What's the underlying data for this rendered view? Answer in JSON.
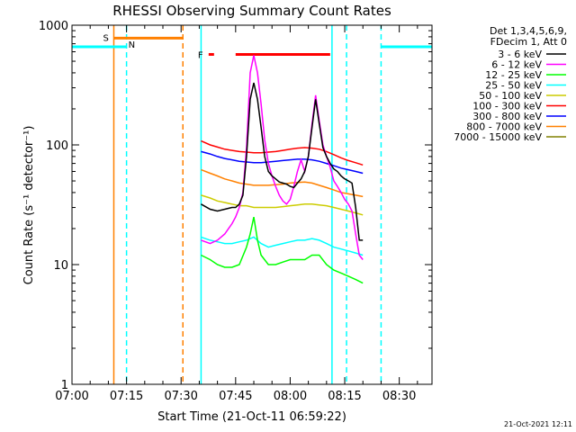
{
  "chart_data": {
    "type": "line",
    "title": "RHESSI Observing Summary Count Rates",
    "xlabel": "Start Time (21-Oct-11 06:59:22)",
    "ylabel": "Count Rate (s⁻¹ detector⁻¹)",
    "x_unit": "minutes after 07:00 UT",
    "xlim": [
      0,
      99
    ],
    "ylim": [
      1,
      1000
    ],
    "yscale": "log",
    "x_ticks": [
      {
        "x": 0,
        "label": "07:00"
      },
      {
        "x": 15,
        "label": "07:15"
      },
      {
        "x": 30,
        "label": "07:30"
      },
      {
        "x": 45,
        "label": "07:45"
      },
      {
        "x": 60,
        "label": "08:00"
      },
      {
        "x": 75,
        "label": "08:15"
      },
      {
        "x": 90,
        "label": "08:30"
      }
    ],
    "y_ticks": [
      {
        "y": 1,
        "label": "1"
      },
      {
        "y": 10,
        "label": "10"
      },
      {
        "y": 100,
        "label": "100"
      },
      {
        "y": 1000,
        "label": "1000"
      }
    ],
    "legend_header": [
      "Det 1,3,4,5,6,9,",
      "FDecim 1, Att 0"
    ],
    "legend_position": "right",
    "series": [
      {
        "name": "3 - 6 keV",
        "color": "#000000",
        "x": [
          35.5,
          38,
          40,
          42,
          44,
          45,
          46,
          47,
          48,
          49,
          50,
          51,
          52,
          53,
          54,
          55,
          56,
          57,
          58,
          59,
          60,
          61,
          62,
          63,
          64,
          65,
          66,
          67,
          68,
          69,
          70,
          71,
          72,
          73,
          74,
          75,
          76,
          77,
          78,
          79,
          80
        ],
        "y": [
          32,
          29,
          28,
          29,
          30,
          30,
          32,
          38,
          80,
          240,
          330,
          240,
          140,
          80,
          60,
          55,
          52,
          49,
          48,
          47,
          45,
          44,
          48,
          52,
          60,
          80,
          140,
          240,
          150,
          95,
          80,
          70,
          63,
          60,
          55,
          52,
          50,
          48,
          30,
          16,
          16
        ]
      },
      {
        "name": "6 - 12 keV",
        "color": "#ff00ff",
        "x": [
          35.5,
          38,
          40,
          42,
          44,
          45,
          46,
          47,
          48,
          49,
          50,
          51,
          52,
          53,
          54,
          55,
          56,
          57,
          58,
          59,
          60,
          61,
          62,
          63,
          64,
          65,
          66,
          67,
          68,
          69,
          70,
          71,
          72,
          73,
          74,
          75,
          76,
          77,
          78,
          79,
          80
        ],
        "y": [
          16,
          15,
          16,
          18,
          22,
          25,
          30,
          40,
          95,
          400,
          560,
          400,
          220,
          110,
          70,
          55,
          45,
          38,
          34,
          32,
          35,
          45,
          60,
          75,
          60,
          80,
          150,
          260,
          160,
          100,
          80,
          65,
          50,
          45,
          40,
          35,
          32,
          28,
          18,
          12,
          11
        ]
      },
      {
        "name": "12 - 25 keV",
        "color": "#00ff00",
        "x": [
          35.5,
          38,
          40,
          42,
          44,
          46,
          48,
          49,
          50,
          51,
          52,
          54,
          56,
          58,
          60,
          62,
          64,
          66,
          68,
          70,
          72,
          74,
          76,
          78,
          80
        ],
        "y": [
          12,
          11,
          10,
          9.5,
          9.5,
          10,
          14,
          18,
          25,
          16,
          12,
          10,
          10,
          10.5,
          11,
          11,
          11,
          12,
          12,
          10,
          9,
          8.5,
          8,
          7.5,
          7
        ]
      },
      {
        "name": "25 - 50 keV",
        "color": "#00ffff",
        "x": [
          35.5,
          38,
          40,
          42,
          44,
          46,
          48,
          50,
          52,
          54,
          56,
          58,
          60,
          62,
          64,
          66,
          68,
          70,
          72,
          74,
          76,
          78,
          80
        ],
        "y": [
          17,
          16,
          15.5,
          15,
          15,
          15.5,
          16,
          17,
          15,
          14,
          14.5,
          15,
          15.5,
          16,
          16,
          16.5,
          16,
          15,
          14,
          13.5,
          13,
          12.5,
          12
        ]
      },
      {
        "name": "50 - 100 keV",
        "color": "#cccc00",
        "x": [
          35.5,
          38,
          40,
          42,
          44,
          46,
          48,
          50,
          52,
          54,
          56,
          58,
          60,
          62,
          64,
          66,
          68,
          70,
          72,
          74,
          76,
          78,
          80
        ],
        "y": [
          38,
          36,
          34,
          33,
          32,
          31,
          31,
          30,
          30,
          30,
          30,
          30.5,
          31,
          31.5,
          32,
          32,
          31.5,
          31,
          30,
          29,
          28,
          27,
          26
        ]
      },
      {
        "name": "100 - 300 keV",
        "color": "#ff0000",
        "x": [
          35.5,
          38,
          40,
          42,
          44,
          46,
          48,
          50,
          52,
          54,
          56,
          58,
          60,
          62,
          64,
          66,
          68,
          70,
          72,
          74,
          76,
          78,
          80
        ],
        "y": [
          108,
          100,
          96,
          92,
          90,
          88,
          87,
          86,
          86,
          87,
          88,
          90,
          92,
          94,
          95,
          94,
          92,
          88,
          83,
          78,
          74,
          71,
          68
        ]
      },
      {
        "name": "300 - 800 keV",
        "color": "#0000ff",
        "x": [
          35.5,
          38,
          40,
          42,
          44,
          46,
          48,
          50,
          52,
          54,
          56,
          58,
          60,
          62,
          64,
          66,
          68,
          70,
          72,
          74,
          76,
          78,
          80
        ],
        "y": [
          88,
          84,
          80,
          77,
          75,
          73,
          72,
          71,
          71,
          72,
          73,
          74,
          75,
          76,
          76,
          75,
          73,
          70,
          67,
          64,
          62,
          60,
          58
        ]
      },
      {
        "name": "800 - 7000 keV",
        "color": "#ff8000",
        "x": [
          35.5,
          38,
          40,
          42,
          44,
          46,
          48,
          50,
          52,
          54,
          56,
          58,
          60,
          62,
          64,
          66,
          68,
          70,
          72,
          74,
          76,
          78,
          80
        ],
        "y": [
          62,
          58,
          55,
          52,
          50,
          48,
          47,
          46,
          46,
          46,
          46.5,
          47,
          48,
          48.5,
          49,
          48,
          46,
          44,
          42,
          40,
          39,
          38,
          37
        ]
      },
      {
        "name": "7000 - 15000 keV",
        "color": "#808000",
        "x": [],
        "y": []
      }
    ],
    "annotations": [
      {
        "label": "S",
        "color": "#ff8000",
        "x_start": 11.5,
        "x_end": 30.5,
        "y": 780
      },
      {
        "label": "N",
        "color": "#00ffff",
        "x_start": 0,
        "x_end": 15,
        "y": 660
      },
      {
        "label": "N",
        "color": "#00ffff",
        "x_start": 85,
        "x_end": 99,
        "y": 660
      },
      {
        "label": "F",
        "color": "#ff0000",
        "x_start": 45,
        "x_end": 71,
        "y": 570
      }
    ],
    "vertical_markers": [
      {
        "x": 11.5,
        "color": "#ff8000",
        "style": "solid"
      },
      {
        "x": 15,
        "color": "#00ffff",
        "style": "dashed"
      },
      {
        "x": 30.5,
        "color": "#ff8000",
        "style": "dashed"
      },
      {
        "x": 35.5,
        "color": "#00ffff",
        "style": "solid"
      },
      {
        "x": 71.5,
        "color": "#00ffff",
        "style": "solid"
      },
      {
        "x": 75.5,
        "color": "#00ffff",
        "style": "dashed"
      },
      {
        "x": 85,
        "color": "#00ffff",
        "style": "dashed"
      }
    ],
    "footer_date": "21-Oct-2021 12:11"
  }
}
